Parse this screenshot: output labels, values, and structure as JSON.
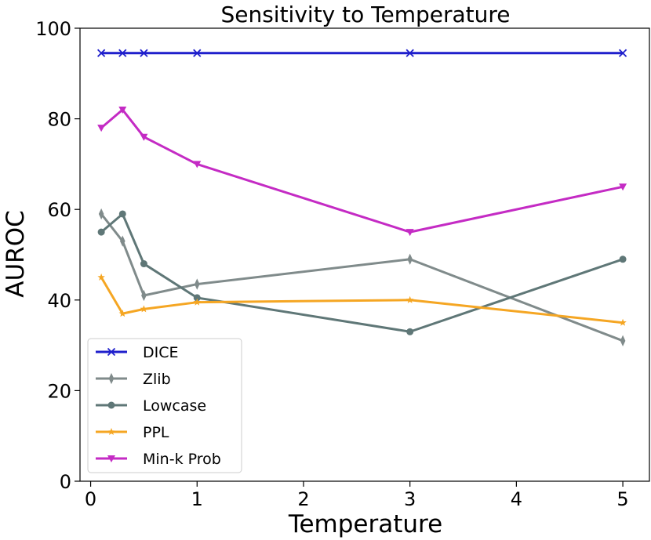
{
  "chart_data": {
    "type": "line",
    "title": "Sensitivity to Temperature",
    "xlabel": "Temperature",
    "ylabel": "AUROC",
    "xlim": [
      -0.1,
      5.25
    ],
    "ylim": [
      0,
      100
    ],
    "xticks": [
      0,
      1,
      2,
      3,
      4,
      5
    ],
    "yticks": [
      0,
      20,
      40,
      60,
      80,
      100
    ],
    "grid": false,
    "legend_position": "lower-left",
    "x": [
      0.1,
      0.3,
      0.5,
      1,
      3,
      5
    ],
    "series": [
      {
        "name": "DICE",
        "color": "#1f1fcc",
        "marker": "x",
        "values": [
          94.5,
          94.5,
          94.5,
          94.5,
          94.5,
          94.5
        ]
      },
      {
        "name": "Zlib",
        "color": "#808b8b",
        "marker": "thin-diamond",
        "values": [
          59,
          53,
          41,
          43.5,
          49,
          31
        ]
      },
      {
        "name": "Lowcase",
        "color": "#5f7777",
        "marker": "circle",
        "values": [
          55,
          59,
          48,
          40.5,
          33,
          49
        ]
      },
      {
        "name": "PPL",
        "color": "#f5a623",
        "marker": "star",
        "values": [
          45,
          37,
          38,
          39.5,
          40,
          35
        ]
      },
      {
        "name": "Min-k Prob",
        "color": "#c42bc4",
        "marker": "triangle-down",
        "values": [
          78,
          82,
          76,
          70,
          55,
          65
        ]
      }
    ]
  }
}
